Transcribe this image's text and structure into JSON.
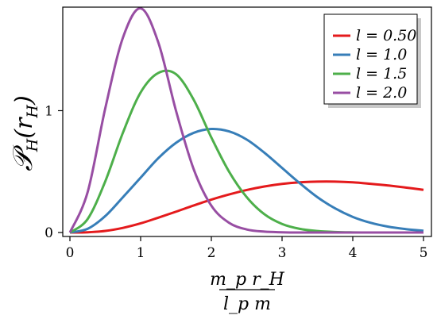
{
  "chart_data": {
    "type": "line",
    "xlabel_num": "m_p r_H",
    "xlabel_den": "l_p m",
    "ylabel_main": "𝒫",
    "ylabel_sub": "H",
    "ylabel_arg": "(r",
    "ylabel_arg_sub": "H",
    "ylabel_close": ")",
    "xlim": [
      0,
      5
    ],
    "ylim": [
      0,
      1.85
    ],
    "xticks": [
      0,
      1,
      2,
      3,
      4,
      5
    ],
    "xtick_labels": [
      "0",
      "1",
      "2",
      "3",
      "4",
      "5"
    ],
    "yticks": [
      0,
      1
    ],
    "ytick_labels": [
      "0",
      "1"
    ],
    "grid": false,
    "legend_position": "top-right",
    "series": [
      {
        "name": "l = 0.50",
        "color": "#e41a1c",
        "x": [
          0,
          0.25,
          0.5,
          0.75,
          1,
          1.25,
          1.5,
          1.75,
          2,
          2.25,
          2.5,
          2.75,
          3,
          3.25,
          3.5,
          3.75,
          4,
          4.25,
          4.5,
          4.75,
          5
        ],
        "y": [
          0,
          0.002,
          0.013,
          0.038,
          0.075,
          0.122,
          0.171,
          0.222,
          0.27,
          0.312,
          0.349,
          0.378,
          0.399,
          0.412,
          0.418,
          0.418,
          0.412,
          0.4,
          0.386,
          0.369,
          0.35
        ]
      },
      {
        "name": "l = 1.0",
        "color": "#377eb8",
        "x": [
          0,
          0.25,
          0.5,
          0.75,
          1,
          1.25,
          1.5,
          1.75,
          2,
          2.25,
          2.5,
          2.75,
          3,
          3.25,
          3.5,
          3.75,
          4,
          4.25,
          4.5,
          4.75,
          5
        ],
        "y": [
          0,
          0.03,
          0.135,
          0.29,
          0.45,
          0.61,
          0.736,
          0.818,
          0.85,
          0.83,
          0.763,
          0.655,
          0.53,
          0.405,
          0.29,
          0.198,
          0.128,
          0.08,
          0.048,
          0.028,
          0.015
        ]
      },
      {
        "name": "l = 1.5",
        "color": "#4daf4a",
        "x": [
          0,
          0.25,
          0.5,
          0.75,
          1,
          1.25,
          1.5,
          1.75,
          2,
          2.25,
          2.5,
          2.75,
          3,
          3.25,
          3.5,
          3.75,
          4,
          4.25,
          4.5,
          4.75,
          5
        ],
        "y": [
          0,
          0.11,
          0.42,
          0.82,
          1.15,
          1.31,
          1.3,
          1.09,
          0.78,
          0.5,
          0.29,
          0.15,
          0.07,
          0.03,
          0.012,
          0.004,
          0.001,
          0,
          0,
          0,
          0
        ]
      },
      {
        "name": "l = 2.0",
        "color": "#984ea3",
        "x": [
          0,
          0.25,
          0.5,
          0.75,
          1,
          1.25,
          1.5,
          1.75,
          2,
          2.25,
          2.5,
          2.75,
          3,
          3.25,
          3.5,
          3.75,
          4,
          4.25,
          4.5,
          4.75,
          5
        ],
        "y": [
          0,
          0.33,
          1.02,
          1.6,
          1.84,
          1.56,
          1.0,
          0.52,
          0.22,
          0.08,
          0.025,
          0.007,
          0.002,
          0,
          0,
          0,
          0,
          0,
          0,
          0,
          0
        ]
      }
    ]
  }
}
